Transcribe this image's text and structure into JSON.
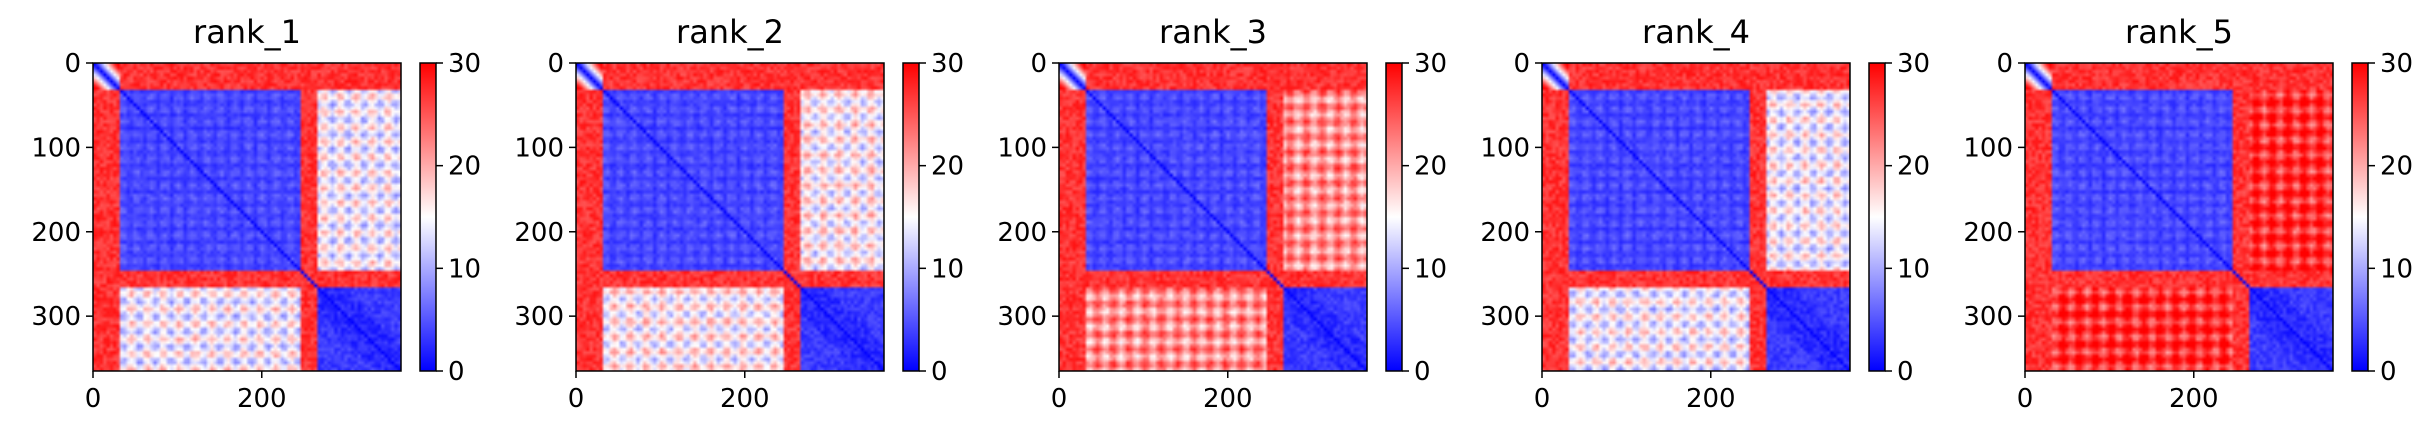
{
  "figure": {
    "colormap": [
      "#0000ff",
      "#ffffff",
      "#ff0000"
    ],
    "colorbar": {
      "range": [
        0,
        30
      ],
      "ticks": [
        0,
        10,
        20,
        30
      ]
    }
  },
  "chart_data": [
    {
      "type": "heatmap",
      "title": "rank_1",
      "x_ticks": [
        0,
        200
      ],
      "y_ticks": [
        0,
        100,
        200,
        300
      ],
      "xlim": [
        0,
        365
      ],
      "ylim": [
        365,
        0
      ],
      "block_boundaries": [
        30,
        245,
        262
      ],
      "cross_block_level": 25,
      "late_block_level": 9,
      "late_cross_level": 13,
      "colorbar_ticks": [
        0,
        10,
        20,
        30
      ]
    },
    {
      "type": "heatmap",
      "title": "rank_2",
      "x_ticks": [
        0,
        200
      ],
      "y_ticks": [
        0,
        100,
        200,
        300
      ],
      "xlim": [
        0,
        365
      ],
      "ylim": [
        365,
        0
      ],
      "block_boundaries": [
        30,
        245,
        262
      ],
      "cross_block_level": 25,
      "late_block_level": 8,
      "late_cross_level": 14,
      "colorbar_ticks": [
        0,
        10,
        20,
        30
      ]
    },
    {
      "type": "heatmap",
      "title": "rank_3",
      "x_ticks": [
        0,
        200
      ],
      "y_ticks": [
        0,
        100,
        200,
        300
      ],
      "xlim": [
        0,
        365
      ],
      "ylim": [
        365,
        0
      ],
      "block_boundaries": [
        30,
        245,
        262
      ],
      "cross_block_level": 25,
      "late_block_level": 9,
      "late_cross_level": 20,
      "colorbar_ticks": [
        0,
        10,
        20,
        30
      ]
    },
    {
      "type": "heatmap",
      "title": "rank_4",
      "x_ticks": [
        0,
        200
      ],
      "y_ticks": [
        0,
        100,
        200,
        300
      ],
      "xlim": [
        0,
        365
      ],
      "ylim": [
        365,
        0
      ],
      "block_boundaries": [
        30,
        245,
        262
      ],
      "cross_block_level": 25,
      "late_block_level": 9,
      "late_cross_level": 13,
      "colorbar_ticks": [
        0,
        10,
        20,
        30
      ]
    },
    {
      "type": "heatmap",
      "title": "rank_5",
      "x_ticks": [
        0,
        200
      ],
      "y_ticks": [
        0,
        100,
        200,
        300
      ],
      "xlim": [
        0,
        365
      ],
      "ylim": [
        365,
        0
      ],
      "block_boundaries": [
        30,
        245,
        262
      ],
      "cross_block_level": 25,
      "late_block_level": 9,
      "late_cross_level": 26,
      "colorbar_ticks": [
        0,
        10,
        20,
        30
      ]
    }
  ]
}
